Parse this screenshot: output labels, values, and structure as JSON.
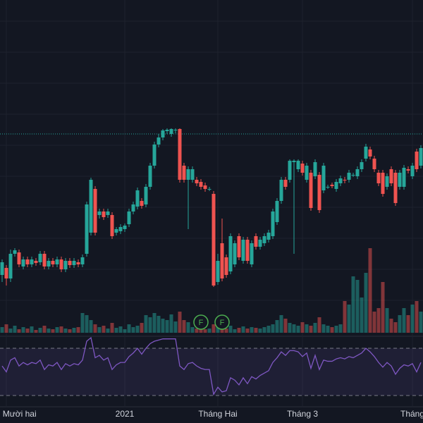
{
  "chart_data": {
    "type": "candlestick",
    "ylim": [
      130,
      600
    ],
    "up_color": "#26a69a",
    "down_color": "#ef5350",
    "price_line": 410,
    "grid": true,
    "categories": [
      null,
      "Tháng Mười hai",
      null,
      null,
      null,
      null,
      null,
      null,
      null,
      null,
      null,
      null,
      null,
      null,
      null,
      null,
      null,
      null,
      null,
      null,
      null,
      null,
      null,
      null,
      null,
      null,
      null,
      null,
      null,
      "2021",
      null,
      null,
      null,
      null,
      null,
      null,
      null,
      null,
      null,
      null,
      null,
      null,
      null,
      null,
      null,
      null,
      null,
      null,
      null,
      null,
      null,
      "Tháng Hai",
      null,
      null,
      null,
      null,
      null,
      null,
      null,
      null,
      null,
      null,
      null,
      null,
      null,
      null,
      null,
      null,
      null,
      null,
      null,
      "Tháng 3",
      null,
      null,
      null,
      null,
      null,
      null,
      null,
      null,
      null,
      null,
      null,
      null,
      null,
      null,
      null,
      null,
      null,
      null,
      null,
      null,
      null,
      null,
      null,
      null,
      null,
      "Tháng",
      null,
      null
    ],
    "event_labels": [
      null,
      null,
      null,
      null,
      null,
      null,
      null,
      null,
      null,
      null,
      null,
      null,
      null,
      null,
      null,
      null,
      null,
      null,
      null,
      null,
      null,
      null,
      null,
      null,
      null,
      null,
      null,
      null,
      null,
      null,
      null,
      null,
      null,
      null,
      null,
      null,
      null,
      null,
      null,
      null,
      null,
      null,
      null,
      null,
      null,
      null,
      null,
      "F",
      null,
      null,
      null,
      null,
      "F",
      null,
      null,
      null,
      null,
      null,
      null,
      null,
      null,
      null,
      null,
      null,
      null,
      null,
      null,
      null,
      null,
      null,
      null,
      null,
      null,
      null,
      null,
      null,
      null,
      null,
      null,
      null,
      null,
      null,
      null,
      null,
      null,
      null,
      null,
      null,
      null,
      null,
      null,
      null,
      null,
      null,
      null,
      null,
      null,
      null,
      null,
      null
    ],
    "open": [
      210,
      220,
      205,
      240,
      242,
      222,
      232,
      225,
      230,
      228,
      240,
      222,
      230,
      225,
      232,
      218,
      230,
      224,
      228,
      225,
      240,
      270,
      332,
      295,
      300,
      295,
      295,
      270,
      272,
      275,
      282,
      300,
      307,
      315,
      310,
      335,
      365,
      395,
      405,
      414,
      410,
      415,
      417,
      365,
      345,
      345,
      345,
      342,
      337,
      332,
      325,
      200,
      255,
      235,
      215,
      225,
      265,
      230,
      260,
      225,
      265,
      250,
      255,
      260,
      265,
      285,
      315,
      345,
      345,
      370,
      360,
      368,
      345,
      355,
      350,
      352,
      330,
      335,
      338,
      332,
      340,
      345,
      345,
      352,
      350,
      360,
      375,
      388,
      375,
      355,
      355,
      335,
      360,
      355,
      335,
      335,
      360,
      350,
      385,
      365
    ],
    "high": [
      232,
      224,
      246,
      248,
      246,
      236,
      236,
      236,
      234,
      244,
      244,
      234,
      234,
      236,
      236,
      234,
      234,
      234,
      232,
      239,
      314,
      348,
      336,
      304,
      304,
      304,
      299,
      278,
      282,
      283,
      304,
      314,
      334,
      319,
      339,
      369,
      399,
      410,
      417,
      418,
      418,
      418,
      418,
      369,
      364,
      364,
      349,
      346,
      341,
      335,
      329,
      240,
      290,
      239,
      269,
      259,
      269,
      264,
      264,
      259,
      269,
      264,
      269,
      274,
      304,
      319,
      349,
      349,
      374,
      374,
      374,
      372,
      369,
      359,
      374,
      356,
      369,
      338,
      341,
      346,
      351,
      349,
      359,
      355,
      364,
      374,
      396,
      392,
      379,
      359,
      359,
      354,
      364,
      359,
      359,
      366,
      364,
      369,
      389,
      394
    ],
    "low": [
      200,
      195,
      200,
      236,
      221,
      218,
      221,
      221,
      223,
      224,
      218,
      218,
      221,
      221,
      214,
      214,
      220,
      220,
      221,
      221,
      236,
      266,
      266,
      290,
      288,
      291,
      261,
      266,
      268,
      271,
      278,
      296,
      303,
      304,
      306,
      331,
      361,
      391,
      401,
      410,
      406,
      411,
      341,
      341,
      275,
      341,
      336,
      331,
      328,
      329,
      193,
      196,
      201,
      206,
      211,
      221,
      231,
      226,
      226,
      221,
      246,
      246,
      251,
      256,
      261,
      281,
      311,
      331,
      341,
      240,
      356,
      351,
      341,
      301,
      346,
      298,
      326,
      332,
      333,
      328,
      336,
      340,
      341,
      349,
      346,
      356,
      371,
      374,
      356,
      336,
      321,
      331,
      336,
      308,
      331,
      331,
      354,
      346,
      356,
      361
    ],
    "close": [
      228,
      205,
      240,
      245,
      225,
      232,
      225,
      232,
      227,
      240,
      222,
      230,
      225,
      232,
      218,
      230,
      224,
      230,
      225,
      235,
      310,
      345,
      270,
      300,
      292,
      300,
      265,
      275,
      278,
      280,
      300,
      310,
      330,
      308,
      335,
      365,
      395,
      405,
      415,
      416,
      417,
      416,
      345,
      345,
      360,
      360,
      340,
      335,
      332,
      332,
      195,
      230,
      205,
      210,
      265,
      255,
      235,
      260,
      230,
      255,
      250,
      260,
      265,
      270,
      300,
      315,
      345,
      335,
      372,
      372,
      372,
      355,
      365,
      305,
      370,
      302,
      365,
      335,
      336,
      342,
      347,
      344,
      355,
      352,
      360,
      370,
      392,
      378,
      360,
      340,
      325,
      350,
      340,
      312,
      355,
      362,
      358,
      365,
      360,
      390
    ],
    "volume": [
      8,
      12,
      6,
      10,
      5,
      8,
      6,
      9,
      4,
      7,
      10,
      6,
      5,
      8,
      9,
      6,
      5,
      7,
      8,
      28,
      25,
      18,
      12,
      8,
      10,
      6,
      14,
      7,
      9,
      5,
      12,
      8,
      10,
      14,
      25,
      22,
      28,
      24,
      20,
      18,
      26,
      16,
      30,
      18,
      15,
      8,
      6,
      7,
      5,
      6,
      12,
      9,
      8,
      6,
      10,
      5,
      7,
      9,
      6,
      8,
      7,
      6,
      8,
      10,
      12,
      18,
      25,
      20,
      14,
      12,
      10,
      15,
      12,
      10,
      14,
      22,
      12,
      10,
      8,
      10,
      12,
      45,
      40,
      80,
      75,
      50,
      85,
      120,
      30,
      35,
      72,
      35,
      20,
      15,
      25,
      35,
      25,
      40,
      45,
      30
    ],
    "rsi": {
      "ylim": [
        21.6,
        79.6
      ],
      "levels": [
        70,
        30
      ],
      "color": "#7e57c2",
      "values": [
        55,
        50,
        60,
        62,
        55,
        58,
        56,
        58,
        57,
        60,
        52,
        56,
        55,
        58,
        52,
        57,
        55,
        57,
        56,
        60,
        76,
        79,
        62,
        64,
        60,
        62,
        52,
        56,
        58,
        58,
        63,
        66,
        70,
        65,
        70,
        74,
        76,
        77,
        78,
        78,
        78,
        78,
        55,
        52,
        57,
        58,
        55,
        53,
        52,
        52,
        31,
        37,
        33,
        34,
        45,
        43,
        39,
        45,
        40,
        46,
        44,
        47,
        49,
        51,
        58,
        62,
        67,
        64,
        68,
        68,
        67,
        63,
        66,
        53,
        64,
        52,
        60,
        59,
        59,
        61,
        62,
        61,
        63,
        62,
        64,
        66,
        70,
        67,
        63,
        58,
        54,
        58,
        55,
        48,
        53,
        56,
        55,
        57,
        50,
        58
      ]
    }
  }
}
